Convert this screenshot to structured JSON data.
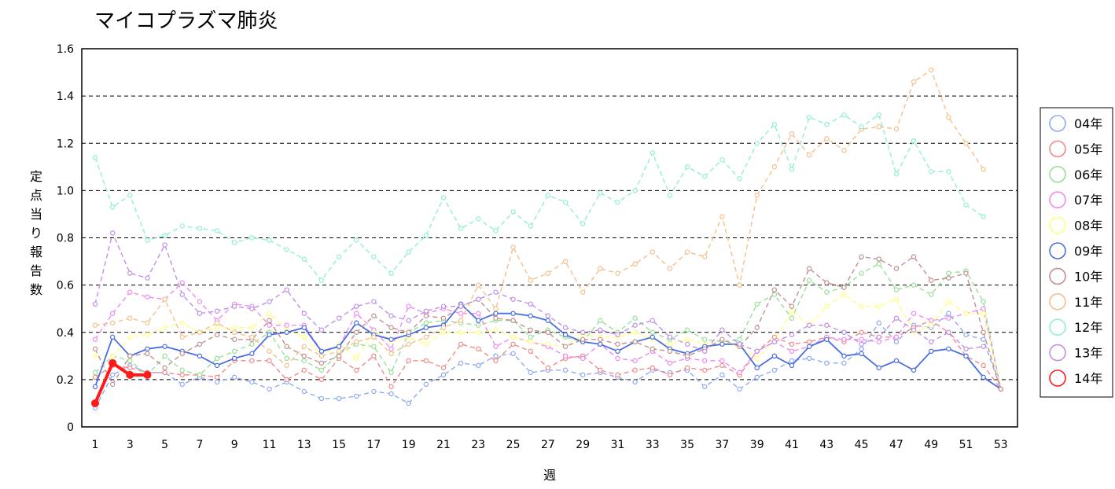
{
  "chart_data": {
    "type": "line",
    "title": "マイコプラズマ肺炎",
    "xlabel": "週",
    "ylabel": "定点当り報告数",
    "ylim": [
      0,
      1.6
    ],
    "xlim": [
      1,
      53
    ],
    "y_ticks": [
      "0",
      "0.2",
      "0.4",
      "0.6",
      "0.8",
      "1.0",
      "1.2",
      "1.4",
      "1.6"
    ],
    "x_ticks": [
      "1",
      "3",
      "5",
      "7",
      "9",
      "11",
      "13",
      "15",
      "17",
      "19",
      "21",
      "23",
      "25",
      "27",
      "29",
      "31",
      "33",
      "35",
      "37",
      "39",
      "41",
      "43",
      "45",
      "47",
      "49",
      "51",
      "53"
    ],
    "grid": "horizontal dashed",
    "legend_position": "right",
    "series": [
      {
        "name": "04年",
        "color": "#8eaaf2",
        "values": [
          0.08,
          0.22,
          0.26,
          0.23,
          0.23,
          0.18,
          0.21,
          0.19,
          0.21,
          0.19,
          0.16,
          0.19,
          0.15,
          0.12,
          0.12,
          0.13,
          0.15,
          0.14,
          0.1,
          0.18,
          0.22,
          0.27,
          0.26,
          0.3,
          0.31,
          0.23,
          0.24,
          0.24,
          0.22,
          0.23,
          0.21,
          0.19,
          0.24,
          0.23,
          0.24,
          0.17,
          0.22,
          0.16,
          0.21,
          0.24,
          0.28,
          0.29,
          0.27,
          0.27,
          0.33,
          0.44,
          0.36,
          0.43,
          0.42,
          0.48,
          0.39,
          0.37,
          0.16
        ]
      },
      {
        "name": "05年",
        "color": "#f08a8a",
        "values": [
          0.21,
          0.26,
          0.25,
          0.23,
          0.23,
          0.22,
          0.22,
          0.21,
          0.28,
          0.28,
          0.28,
          0.2,
          0.24,
          0.2,
          0.29,
          0.24,
          0.3,
          0.17,
          0.28,
          0.28,
          0.25,
          0.35,
          0.33,
          0.28,
          0.35,
          0.32,
          0.25,
          0.29,
          0.3,
          0.24,
          0.22,
          0.24,
          0.25,
          0.22,
          0.25,
          0.24,
          0.26,
          0.22,
          0.32,
          0.38,
          0.35,
          0.36,
          0.38,
          0.36,
          0.4,
          0.38,
          0.38,
          0.42,
          0.45,
          0.4,
          0.3,
          0.26,
          0.16
        ]
      },
      {
        "name": "06年",
        "color": "#98e098",
        "values": [
          0.23,
          0.3,
          0.28,
          0.22,
          0.3,
          0.24,
          0.22,
          0.29,
          0.32,
          0.35,
          0.4,
          0.29,
          0.28,
          0.24,
          0.31,
          0.35,
          0.34,
          0.23,
          0.4,
          0.44,
          0.45,
          0.44,
          0.43,
          0.45,
          0.45,
          0.38,
          0.41,
          0.38,
          0.36,
          0.45,
          0.4,
          0.46,
          0.4,
          0.37,
          0.41,
          0.37,
          0.36,
          0.37,
          0.52,
          0.56,
          0.46,
          0.62,
          0.57,
          0.59,
          0.65,
          0.69,
          0.58,
          0.6,
          0.56,
          0.65,
          0.66,
          0.53,
          0.16
        ]
      },
      {
        "name": "07年",
        "color": "#f08af0",
        "values": [
          0.37,
          0.48,
          0.57,
          0.55,
          0.54,
          0.61,
          0.53,
          0.45,
          0.52,
          0.51,
          0.43,
          0.43,
          0.43,
          0.32,
          0.34,
          0.48,
          0.41,
          0.33,
          0.51,
          0.48,
          0.5,
          0.48,
          0.48,
          0.34,
          0.38,
          0.36,
          0.34,
          0.3,
          0.29,
          0.35,
          0.29,
          0.28,
          0.32,
          0.27,
          0.29,
          0.28,
          0.28,
          0.23,
          0.32,
          0.36,
          0.32,
          0.34,
          0.38,
          0.37,
          0.37,
          0.36,
          0.38,
          0.48,
          0.45,
          0.46,
          0.48,
          0.5,
          0.16
        ]
      },
      {
        "name": "08年",
        "color": "#ffff80",
        "values": [
          0.3,
          0.3,
          0.38,
          0.39,
          0.42,
          0.44,
          0.4,
          0.42,
          0.42,
          0.42,
          0.48,
          0.41,
          0.38,
          0.3,
          0.35,
          0.29,
          0.4,
          0.36,
          0.38,
          0.35,
          0.4,
          0.4,
          0.4,
          0.41,
          0.38,
          0.36,
          0.35,
          0.34,
          0.39,
          0.38,
          0.38,
          0.4,
          0.37,
          0.35,
          0.37,
          0.35,
          0.36,
          0.34,
          0.29,
          0.36,
          0.49,
          0.43,
          0.51,
          0.56,
          0.51,
          0.51,
          0.54,
          0.4,
          0.43,
          0.53,
          0.48,
          0.48,
          0.16
        ]
      },
      {
        "name": "09年",
        "color": "#4a6ee0",
        "values": [
          0.17,
          0.38,
          0.3,
          0.33,
          0.34,
          0.32,
          0.3,
          0.26,
          0.29,
          0.31,
          0.39,
          0.4,
          0.42,
          0.32,
          0.34,
          0.44,
          0.39,
          0.37,
          0.39,
          0.42,
          0.43,
          0.52,
          0.45,
          0.48,
          0.48,
          0.47,
          0.45,
          0.39,
          0.36,
          0.35,
          0.32,
          0.36,
          0.38,
          0.33,
          0.31,
          0.34,
          0.35,
          0.35,
          0.25,
          0.3,
          0.26,
          0.34,
          0.37,
          0.3,
          0.31,
          0.25,
          0.28,
          0.24,
          0.32,
          0.33,
          0.3,
          0.21,
          0.16
        ]
      },
      {
        "name": "10年",
        "color": "#c09090",
        "values": [
          0.33,
          0.18,
          0.3,
          0.31,
          0.25,
          0.31,
          0.35,
          0.39,
          0.37,
          0.37,
          0.45,
          0.34,
          0.3,
          0.27,
          0.3,
          0.4,
          0.47,
          0.42,
          0.4,
          0.47,
          0.46,
          0.51,
          0.54,
          0.46,
          0.45,
          0.41,
          0.4,
          0.34,
          0.37,
          0.37,
          0.35,
          0.36,
          0.33,
          0.32,
          0.3,
          0.33,
          0.37,
          0.34,
          0.42,
          0.58,
          0.51,
          0.67,
          0.61,
          0.59,
          0.72,
          0.71,
          0.67,
          0.72,
          0.62,
          0.63,
          0.65,
          0.4,
          0.16
        ]
      },
      {
        "name": "11年",
        "color": "#f5c08a",
        "values": [
          0.43,
          0.44,
          0.46,
          0.44,
          0.54,
          0.38,
          0.4,
          0.44,
          0.4,
          0.38,
          0.32,
          0.26,
          0.34,
          0.3,
          0.32,
          0.36,
          0.38,
          0.31,
          0.35,
          0.38,
          0.42,
          0.45,
          0.6,
          0.5,
          0.76,
          0.62,
          0.65,
          0.7,
          0.57,
          0.67,
          0.65,
          0.69,
          0.74,
          0.67,
          0.74,
          0.72,
          0.89,
          0.6,
          0.98,
          1.1,
          1.24,
          1.15,
          1.22,
          1.17,
          1.26,
          1.27,
          1.26,
          1.46,
          1.51,
          1.31,
          1.2,
          1.09,
          null
        ]
      },
      {
        "name": "12年",
        "color": "#90f0d0",
        "values": [
          1.14,
          0.93,
          0.98,
          0.79,
          0.81,
          0.85,
          0.84,
          0.83,
          0.78,
          0.8,
          0.79,
          0.75,
          0.71,
          0.62,
          0.72,
          0.79,
          0.72,
          0.65,
          0.74,
          0.81,
          0.97,
          0.84,
          0.88,
          0.83,
          0.91,
          0.85,
          0.98,
          0.95,
          0.86,
          0.99,
          0.95,
          1.0,
          1.16,
          0.98,
          1.1,
          1.06,
          1.13,
          1.05,
          1.2,
          1.28,
          1.09,
          1.31,
          1.28,
          1.32,
          1.27,
          1.32,
          1.07,
          1.21,
          1.08,
          1.08,
          0.94,
          0.89,
          null
        ]
      },
      {
        "name": "13年",
        "color": "#c090e8",
        "values": [
          0.52,
          0.82,
          0.65,
          0.63,
          0.77,
          0.56,
          0.48,
          0.49,
          0.51,
          0.5,
          0.53,
          0.58,
          0.48,
          0.41,
          0.46,
          0.51,
          0.53,
          0.47,
          0.45,
          0.49,
          0.51,
          0.51,
          0.54,
          0.57,
          0.54,
          0.52,
          0.47,
          0.42,
          0.4,
          0.41,
          0.39,
          0.43,
          0.45,
          0.38,
          0.35,
          0.32,
          0.41,
          0.35,
          0.32,
          0.36,
          0.39,
          0.43,
          0.43,
          0.4,
          0.35,
          0.38,
          0.46,
          0.41,
          0.36,
          0.4,
          0.33,
          0.34,
          null
        ]
      },
      {
        "name": "14年",
        "color": "#ff1a1a",
        "values": [
          0.1,
          0.27,
          0.22,
          0.22
        ]
      }
    ]
  }
}
